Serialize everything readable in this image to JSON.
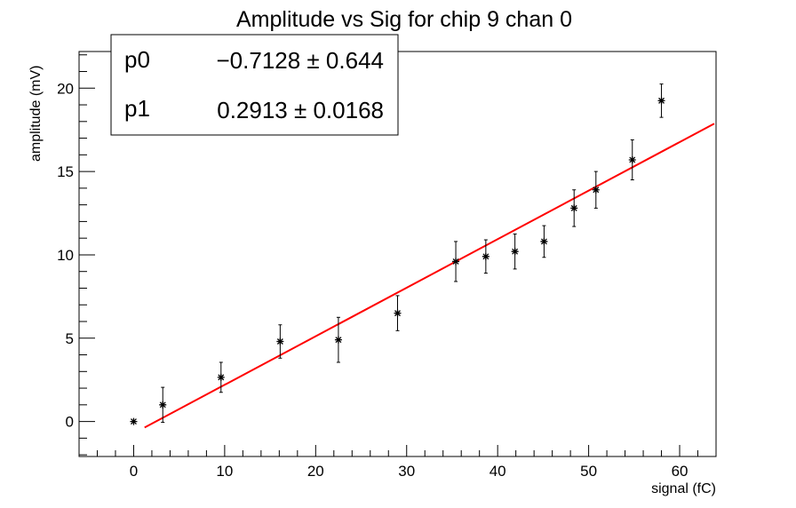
{
  "chart_data": {
    "type": "scatter",
    "title": "Amplitude vs Sig for chip 9 chan 0",
    "xlabel": "signal (fC)",
    "ylabel": "amplitude (mV)",
    "xlim": [
      -6,
      64
    ],
    "ylim": [
      -2.1,
      22.2
    ],
    "x_ticks": [
      0,
      10,
      20,
      30,
      40,
      50,
      60
    ],
    "y_ticks": [
      0,
      5,
      10,
      15,
      20
    ],
    "grid": false,
    "legend": "none",
    "points": [
      {
        "x": 0.0,
        "y": 0.0,
        "err": 0.0
      },
      {
        "x": 3.2,
        "y": 1.0,
        "err": 1.05
      },
      {
        "x": 9.6,
        "y": 2.65,
        "err": 0.9
      },
      {
        "x": 16.1,
        "y": 4.8,
        "err": 1.0
      },
      {
        "x": 22.5,
        "y": 4.9,
        "err": 1.35
      },
      {
        "x": 29.0,
        "y": 6.5,
        "err": 1.05
      },
      {
        "x": 35.4,
        "y": 9.6,
        "err": 1.2
      },
      {
        "x": 38.7,
        "y": 9.9,
        "err": 1.0
      },
      {
        "x": 41.9,
        "y": 10.2,
        "err": 1.05
      },
      {
        "x": 45.1,
        "y": 10.8,
        "err": 0.95
      },
      {
        "x": 48.4,
        "y": 12.8,
        "err": 1.1
      },
      {
        "x": 50.8,
        "y": 13.9,
        "err": 1.1
      },
      {
        "x": 54.8,
        "y": 15.7,
        "err": 1.2
      },
      {
        "x": 58.0,
        "y": 19.25,
        "err": 1.0
      }
    ],
    "fit": {
      "type": "linear",
      "color": "#ff0000",
      "x_range": [
        1.2,
        63.8
      ],
      "p0": -0.7128,
      "p1": 0.2913
    },
    "stats_box": {
      "rows": [
        {
          "name": "p0",
          "value": "−0.7128 ± 0.644"
        },
        {
          "name": "p1",
          "value": "0.2913 ± 0.0168"
        }
      ]
    }
  }
}
